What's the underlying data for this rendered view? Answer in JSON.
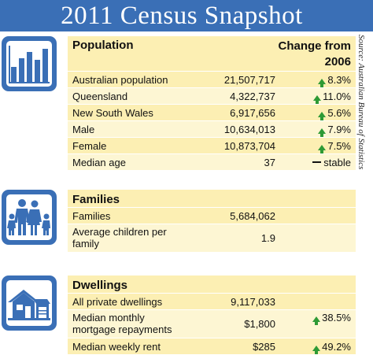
{
  "title": "2011 Census Snapshot",
  "source": "Source: Australian Bureau of Statistics",
  "colors": {
    "blue": "#3a6fb6",
    "band_dark": "#fcefb3",
    "band_light": "#fdf6d3",
    "arrow_green": "#2e9a35"
  },
  "population": {
    "icon": "bar-chart-icon",
    "heading": "Population",
    "change_heading": "Change from 2006",
    "rows": [
      {
        "label": "Australian population",
        "value": "21,507,717",
        "change": "8.3%",
        "trend": "up"
      },
      {
        "label": "Queensland",
        "value": "4,322,737",
        "change": "11.0%",
        "trend": "up"
      },
      {
        "label": "New South Wales",
        "value": "6,917,656",
        "change": "5.6%",
        "trend": "up"
      },
      {
        "label": "Male",
        "value": "10,634,013",
        "change": "7.9%",
        "trend": "up"
      },
      {
        "label": "Female",
        "value": "10,873,704",
        "change": "7.5%",
        "trend": "up"
      },
      {
        "label": "Median age",
        "value": "37",
        "change": "stable",
        "trend": "flat"
      }
    ]
  },
  "families": {
    "icon": "family-icon",
    "heading": "Families",
    "rows": [
      {
        "label": "Families",
        "value": "5,684,062"
      },
      {
        "label": "Average children per family",
        "value": "1.9"
      }
    ]
  },
  "dwellings": {
    "icon": "house-icon",
    "heading": "Dwellings",
    "rows": [
      {
        "label": "All private dwellings",
        "value": "9,117,033",
        "change": "",
        "trend": ""
      },
      {
        "label": "Median monthly mortgage repayments",
        "value": "$1,800",
        "change": "38.5%",
        "trend": "up"
      },
      {
        "label": "Median weekly rent",
        "value": "$285",
        "change": "49.2%",
        "trend": "up"
      }
    ]
  }
}
